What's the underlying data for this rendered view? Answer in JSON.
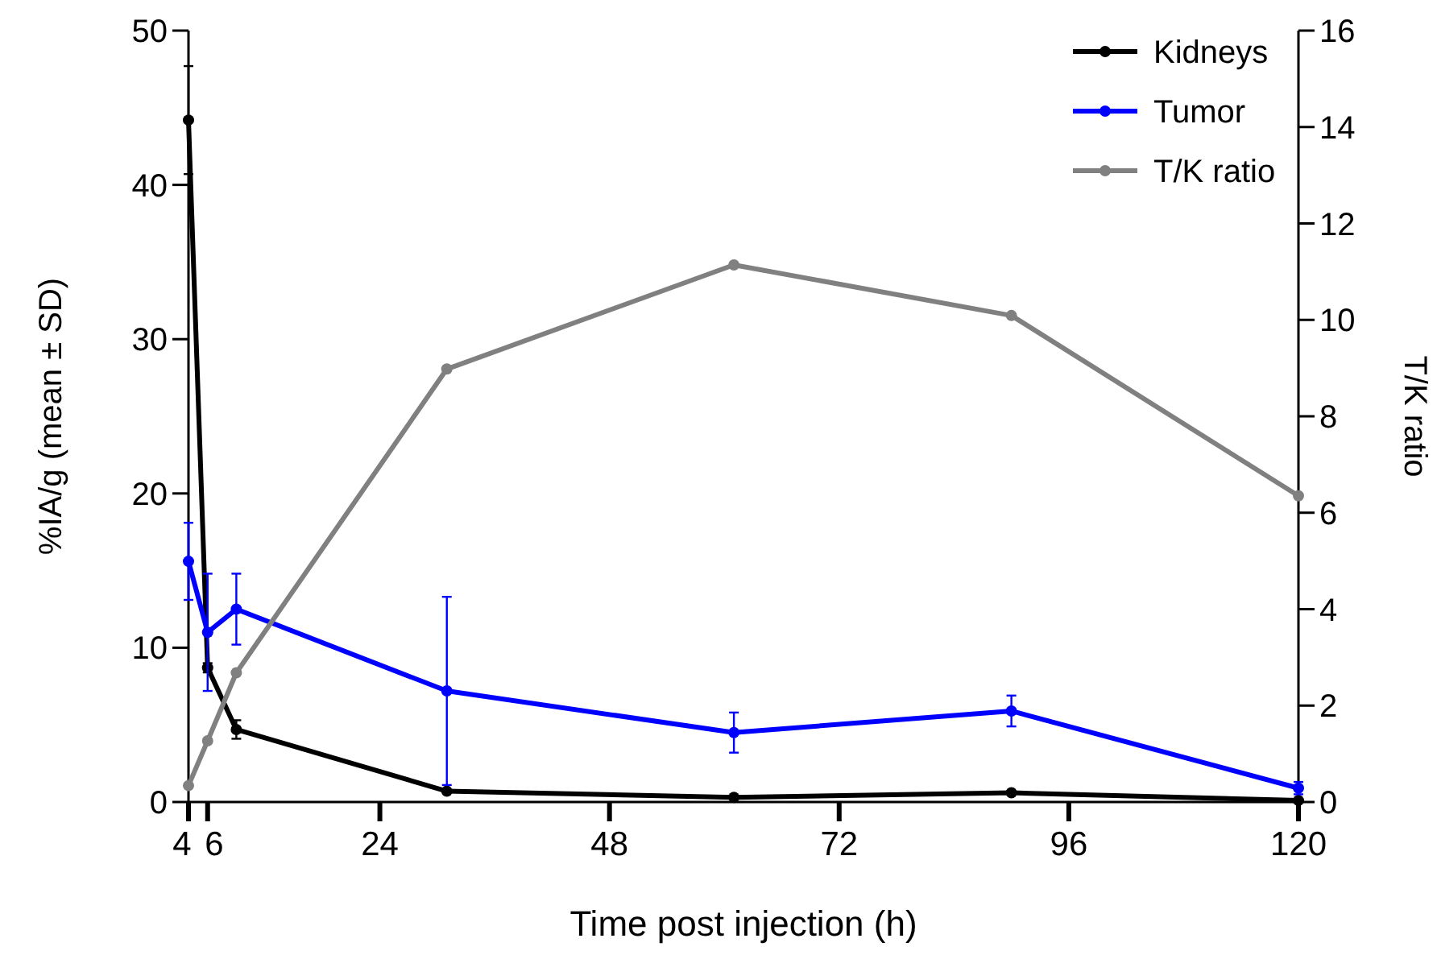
{
  "chart_data": {
    "type": "line",
    "xlabel": "Time post injection (h)",
    "ylabel": "%IA/g (mean ± SD)",
    "y2label": "T/K ratio",
    "x": [
      4,
      6,
      9,
      31,
      61,
      90,
      120
    ],
    "xlim": [
      4,
      120
    ],
    "xticks": [
      4,
      6,
      24,
      48,
      72,
      96,
      120
    ],
    "ylim": [
      0,
      50
    ],
    "yticks": [
      0,
      10,
      20,
      30,
      40,
      50
    ],
    "y2lim": [
      0,
      16
    ],
    "y2ticks": [
      0,
      2,
      4,
      6,
      8,
      10,
      12,
      14,
      16
    ],
    "series": [
      {
        "name": "Kidneys",
        "color": "#000000",
        "values": [
          44.2,
          8.7,
          4.7,
          0.7,
          0.3,
          0.6,
          0.1
        ],
        "errors": [
          3.5,
          0.3,
          0.6,
          null,
          null,
          null,
          null
        ]
      },
      {
        "name": "Tumor",
        "color": "#0000ff",
        "values": [
          15.6,
          11.0,
          12.5,
          7.2,
          4.5,
          5.9,
          0.9
        ],
        "errors": [
          2.5,
          3.8,
          2.3,
          6.1,
          1.3,
          1.0,
          0.4
        ]
      },
      {
        "name": "T/K ratio",
        "color": "#808080",
        "axis": "y2",
        "values": [
          0.34,
          1.27,
          2.68,
          8.98,
          11.14,
          10.09,
          6.35
        ]
      }
    ],
    "legend": "top right",
    "marker": "circle",
    "grid": false
  }
}
